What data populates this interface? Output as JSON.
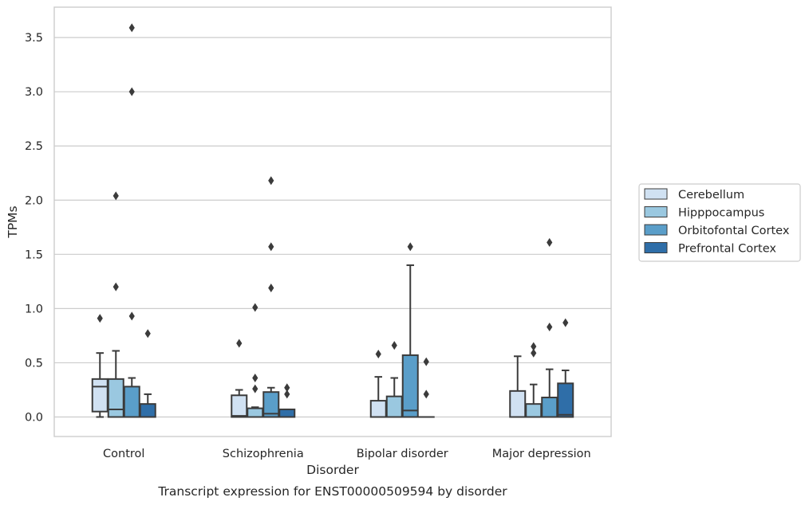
{
  "chart_data": {
    "type": "box",
    "title": "",
    "caption": "Transcript expression for ENST00000509594 by disorder",
    "xlabel": "Disorder",
    "ylabel": "TPMs",
    "ylim": [
      -0.18,
      3.78
    ],
    "yticks": [
      0.0,
      0.5,
      1.0,
      1.5,
      2.0,
      2.5,
      3.0,
      3.5
    ],
    "ytick_labels": [
      "0.0",
      "0.5",
      "1.0",
      "1.5",
      "2.0",
      "2.5",
      "3.0",
      "3.5"
    ],
    "grid": true,
    "legend_position": "right",
    "categories": [
      "Control",
      "Schizophrenia",
      "Bipolar disorder",
      "Major depression"
    ],
    "series": [
      {
        "name": "Cerebellum",
        "color": "#d0e1f2",
        "boxes": [
          {
            "whislo": 0.0,
            "q1": 0.05,
            "med": 0.28,
            "q3": 0.35,
            "whishi": 0.59,
            "fliers": [
              0.91
            ]
          },
          {
            "whislo": 0.0,
            "q1": 0.0,
            "med": 0.01,
            "q3": 0.2,
            "whishi": 0.25,
            "fliers": [
              0.68
            ]
          },
          {
            "whislo": 0.0,
            "q1": 0.0,
            "med": 0.0,
            "q3": 0.15,
            "whishi": 0.37,
            "fliers": [
              0.58
            ]
          },
          {
            "whislo": 0.0,
            "q1": 0.0,
            "med": 0.0,
            "q3": 0.24,
            "whishi": 0.56,
            "fliers": []
          }
        ]
      },
      {
        "name": "Hipppocampus",
        "color": "#9ac8e0",
        "boxes": [
          {
            "whislo": 0.0,
            "q1": 0.0,
            "med": 0.07,
            "q3": 0.35,
            "whishi": 0.61,
            "fliers": [
              2.04,
              1.2
            ]
          },
          {
            "whislo": 0.0,
            "q1": 0.0,
            "med": 0.0,
            "q3": 0.08,
            "whishi": 0.09,
            "fliers": [
              1.01,
              0.36,
              0.26
            ]
          },
          {
            "whislo": 0.0,
            "q1": 0.0,
            "med": 0.0,
            "q3": 0.19,
            "whishi": 0.36,
            "fliers": [
              0.66
            ]
          },
          {
            "whislo": 0.0,
            "q1": 0.0,
            "med": 0.0,
            "q3": 0.12,
            "whishi": 0.3,
            "fliers": [
              0.65,
              0.59
            ]
          }
        ]
      },
      {
        "name": "Orbitofontal Cortex",
        "color": "#5a9ec9",
        "boxes": [
          {
            "whislo": 0.0,
            "q1": 0.0,
            "med": 0.0,
            "q3": 0.28,
            "whishi": 0.36,
            "fliers": [
              3.59,
              3.0,
              0.93
            ]
          },
          {
            "whislo": 0.0,
            "q1": 0.0,
            "med": 0.03,
            "q3": 0.23,
            "whishi": 0.27,
            "fliers": [
              2.18,
              1.57,
              1.19
            ]
          },
          {
            "whislo": 0.0,
            "q1": 0.0,
            "med": 0.06,
            "q3": 0.57,
            "whishi": 1.4,
            "fliers": [
              1.57
            ]
          },
          {
            "whislo": 0.0,
            "q1": 0.0,
            "med": 0.0,
            "q3": 0.18,
            "whishi": 0.44,
            "fliers": [
              1.61,
              0.83
            ]
          }
        ]
      },
      {
        "name": "Prefrontal Cortex",
        "color": "#2f6ea8",
        "boxes": [
          {
            "whislo": 0.0,
            "q1": 0.0,
            "med": 0.0,
            "q3": 0.12,
            "whishi": 0.21,
            "fliers": [
              0.77
            ]
          },
          {
            "whislo": 0.0,
            "q1": 0.0,
            "med": 0.0,
            "q3": 0.07,
            "whishi": 0.07,
            "fliers": [
              0.27,
              0.21
            ]
          },
          {
            "whislo": 0.0,
            "q1": 0.0,
            "med": 0.0,
            "q3": 0.0,
            "whishi": 0.0,
            "fliers": [
              0.51,
              0.21
            ]
          },
          {
            "whislo": 0.0,
            "q1": 0.0,
            "med": 0.02,
            "q3": 0.31,
            "whishi": 0.43,
            "fliers": [
              0.87
            ]
          }
        ]
      }
    ]
  }
}
